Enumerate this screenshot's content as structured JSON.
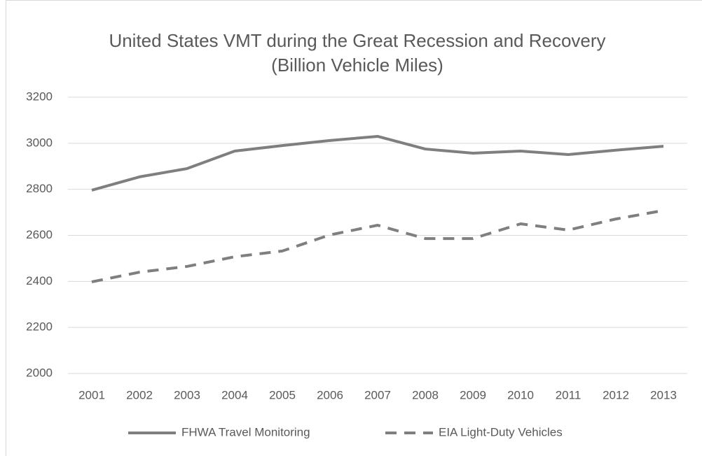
{
  "chart_data": {
    "type": "line",
    "title": "United States VMT during the Great Recession and Recovery",
    "subtitle": "(Billion Vehicle Miles)",
    "categories": [
      "2001",
      "2002",
      "2003",
      "2004",
      "2005",
      "2006",
      "2007",
      "2008",
      "2009",
      "2010",
      "2011",
      "2012",
      "2013"
    ],
    "series": [
      {
        "name": "FHWA Travel Monitoring",
        "color": "#7f7f7f",
        "style": "solid",
        "values": [
          2796,
          2854,
          2890,
          2966,
          2990,
          3012,
          3030,
          2975,
          2957,
          2966,
          2951,
          2970,
          2987
        ]
      },
      {
        "name": "EIA Light-Duty Vehicles",
        "color": "#7f7f7f",
        "style": "dashed",
        "values": [
          2398,
          2440,
          2465,
          2507,
          2532,
          2602,
          2644,
          2586,
          2586,
          2650,
          2623,
          2671,
          2708
        ]
      }
    ],
    "ylim": [
      2000,
      3200
    ],
    "yticks": [
      2000,
      2200,
      2400,
      2600,
      2800,
      3000,
      3200
    ],
    "grid": true,
    "legend": "bottom"
  }
}
